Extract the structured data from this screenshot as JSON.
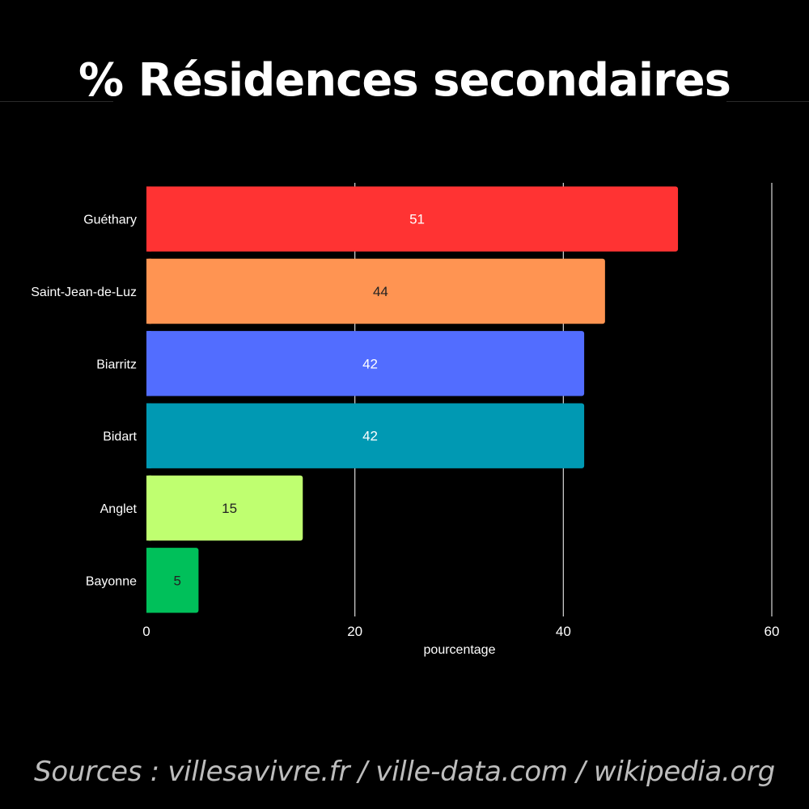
{
  "title": "% Résidences secondaires",
  "source": "Sources : villesavivre.fr / ville-data.com / wikipedia.org",
  "chart_data": {
    "type": "bar",
    "orientation": "horizontal",
    "categories": [
      "Guéthary",
      "Saint-Jean-de-Luz",
      "Biarritz",
      "Bidart",
      "Anglet",
      "Bayonne"
    ],
    "values": [
      51,
      44,
      42,
      42,
      15,
      5
    ],
    "colors": [
      "#ff3333",
      "#ff9452",
      "#526dff",
      "#0099b3",
      "#bfff70",
      "#00c05a"
    ],
    "label_colors": [
      "#ffffff",
      "#222222",
      "#ffffff",
      "#ffffff",
      "#222222",
      "#222222"
    ],
    "xlabel": "pourcentage",
    "xlim": [
      0,
      60
    ],
    "xticks": [
      0,
      20,
      40,
      60
    ],
    "grid": "vertical",
    "data_labels": true
  }
}
